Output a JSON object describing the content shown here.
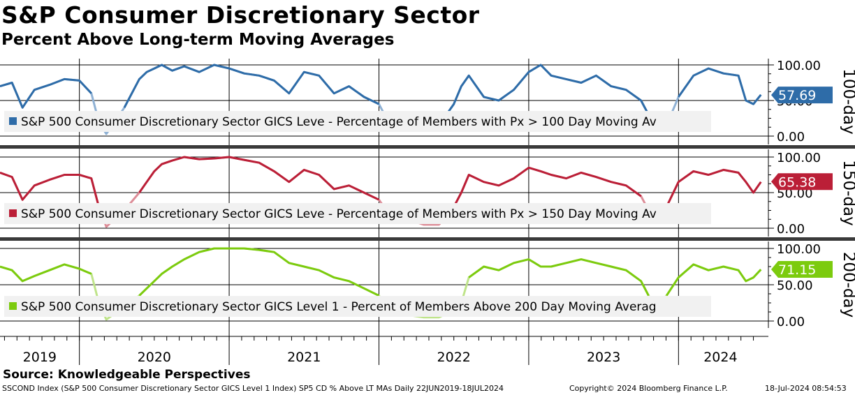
{
  "header": {
    "title": "S&P Consumer Discretionary Sector",
    "subtitle": "Percent Above Long-term Moving Averages"
  },
  "colors": {
    "p100": "#2e6ca8",
    "p100_light": "#8fb1d4",
    "p150": "#bb1f37",
    "p150_light": "#dd8d98",
    "p200": "#7ccb0e",
    "p200_light": "#bfe48a"
  },
  "chart_data": {
    "type": "line",
    "x_axis": {
      "categories": [
        "2019",
        "2020",
        "2021",
        "2022",
        "2023",
        "2024"
      ],
      "range": [
        "2019-06-22",
        "2024-07-18"
      ]
    },
    "panels": [
      {
        "id": "p100",
        "axis_title": "100-day",
        "ylim": [
          0,
          100
        ],
        "yticks": [
          "100.00",
          "50.00",
          "0.00"
        ],
        "last_value": "57.69",
        "legend": "S&P 500 Consumer Discretionary Sector GICS Leve - Percentage of Members with Px > 100 Day Moving Av",
        "x": [
          2019.47,
          2019.55,
          2019.62,
          2019.7,
          2019.8,
          2019.9,
          2020.0,
          2020.08,
          2020.13,
          2020.18,
          2020.22,
          2020.3,
          2020.4,
          2020.45,
          2020.5,
          2020.55,
          2020.62,
          2020.7,
          2020.8,
          2020.9,
          2021.0,
          2021.1,
          2021.2,
          2021.3,
          2021.4,
          2021.5,
          2021.6,
          2021.7,
          2021.8,
          2021.9,
          2022.0,
          2022.05,
          2022.1,
          2022.2,
          2022.3,
          2022.4,
          2022.45,
          2022.5,
          2022.55,
          2022.6,
          2022.7,
          2022.8,
          2022.9,
          2023.0,
          2023.08,
          2023.15,
          2023.25,
          2023.35,
          2023.45,
          2023.55,
          2023.65,
          2023.75,
          2023.8,
          2023.85,
          2023.92,
          2024.0,
          2024.1,
          2024.2,
          2024.3,
          2024.4,
          2024.45,
          2024.5,
          2024.55
        ],
        "y": [
          70,
          75,
          40,
          65,
          72,
          80,
          78,
          60,
          20,
          3,
          15,
          40,
          80,
          90,
          95,
          100,
          92,
          98,
          90,
          100,
          95,
          88,
          85,
          78,
          60,
          90,
          85,
          60,
          70,
          55,
          45,
          25,
          15,
          22,
          10,
          8,
          30,
          45,
          70,
          85,
          55,
          50,
          65,
          90,
          100,
          85,
          80,
          75,
          85,
          70,
          65,
          50,
          30,
          20,
          15,
          55,
          85,
          95,
          88,
          85,
          50,
          45,
          58
        ]
      },
      {
        "id": "p150",
        "axis_title": "150-day",
        "ylim": [
          0,
          100
        ],
        "yticks": [
          "100.00",
          "50.00",
          "0.00"
        ],
        "last_value": "65.38",
        "legend": "S&P 500 Consumer Discretionary Sector GICS Leve - Percentage of Members with Px > 150 Day Moving Av",
        "x": [
          2019.47,
          2019.55,
          2019.62,
          2019.7,
          2019.8,
          2019.9,
          2020.0,
          2020.08,
          2020.13,
          2020.18,
          2020.22,
          2020.3,
          2020.4,
          2020.45,
          2020.5,
          2020.55,
          2020.62,
          2020.7,
          2020.8,
          2020.9,
          2021.0,
          2021.1,
          2021.2,
          2021.3,
          2021.4,
          2021.5,
          2021.6,
          2021.7,
          2021.8,
          2021.9,
          2022.0,
          2022.05,
          2022.1,
          2022.2,
          2022.3,
          2022.4,
          2022.45,
          2022.5,
          2022.55,
          2022.6,
          2022.7,
          2022.8,
          2022.9,
          2023.0,
          2023.08,
          2023.15,
          2023.25,
          2023.35,
          2023.45,
          2023.55,
          2023.65,
          2023.75,
          2023.8,
          2023.85,
          2023.92,
          2024.0,
          2024.1,
          2024.2,
          2024.3,
          2024.4,
          2024.45,
          2024.5,
          2024.55
        ],
        "y": [
          78,
          72,
          40,
          60,
          68,
          75,
          75,
          70,
          30,
          2,
          10,
          25,
          50,
          65,
          80,
          90,
          95,
          100,
          97,
          98,
          100,
          96,
          92,
          80,
          65,
          82,
          75,
          55,
          60,
          50,
          40,
          25,
          20,
          12,
          5,
          5,
          15,
          30,
          50,
          75,
          65,
          60,
          70,
          85,
          80,
          75,
          70,
          78,
          72,
          65,
          60,
          45,
          25,
          18,
          30,
          65,
          80,
          75,
          82,
          78,
          65,
          50,
          65
        ]
      },
      {
        "id": "p200",
        "axis_title": "200-day",
        "ylim": [
          0,
          100
        ],
        "yticks": [
          "100.00",
          "50.00",
          "0.00"
        ],
        "last_value": "71.15",
        "legend": "S&P 500 Consumer Discretionary Sector GICS Level 1 - Percent of Members Above 200 Day Moving Averag",
        "x": [
          2019.47,
          2019.55,
          2019.62,
          2019.7,
          2019.8,
          2019.9,
          2020.0,
          2020.08,
          2020.13,
          2020.18,
          2020.22,
          2020.3,
          2020.4,
          2020.45,
          2020.5,
          2020.55,
          2020.62,
          2020.7,
          2020.8,
          2020.9,
          2021.0,
          2021.1,
          2021.2,
          2021.3,
          2021.4,
          2021.5,
          2021.6,
          2021.7,
          2021.8,
          2021.9,
          2022.0,
          2022.05,
          2022.1,
          2022.2,
          2022.3,
          2022.4,
          2022.45,
          2022.5,
          2022.55,
          2022.6,
          2022.7,
          2022.8,
          2022.9,
          2023.0,
          2023.08,
          2023.15,
          2023.25,
          2023.35,
          2023.45,
          2023.55,
          2023.65,
          2023.75,
          2023.8,
          2023.85,
          2023.92,
          2024.0,
          2024.1,
          2024.2,
          2024.3,
          2024.4,
          2024.45,
          2024.5,
          2024.55
        ],
        "y": [
          75,
          70,
          55,
          62,
          70,
          78,
          72,
          65,
          25,
          2,
          8,
          20,
          35,
          45,
          55,
          65,
          75,
          85,
          95,
          100,
          100,
          100,
          98,
          95,
          80,
          75,
          70,
          60,
          55,
          45,
          35,
          20,
          15,
          8,
          5,
          5,
          10,
          20,
          25,
          60,
          75,
          70,
          80,
          85,
          75,
          75,
          80,
          85,
          80,
          75,
          70,
          55,
          35,
          20,
          35,
          60,
          78,
          70,
          75,
          70,
          55,
          60,
          71
        ]
      }
    ]
  },
  "source": "Source: Knowledgeable Perspectives",
  "footer": {
    "left": "SSCOND Index (S&P 500 Consumer Discretionary Sector GICS Level 1 Index) SP5 CD % Above LT MAs  Daily 22JUN2019-18JUL2024",
    "copyright": "Copyright© 2024 Bloomberg Finance L.P.",
    "timestamp": "18-Jul-2024 08:54:53"
  }
}
